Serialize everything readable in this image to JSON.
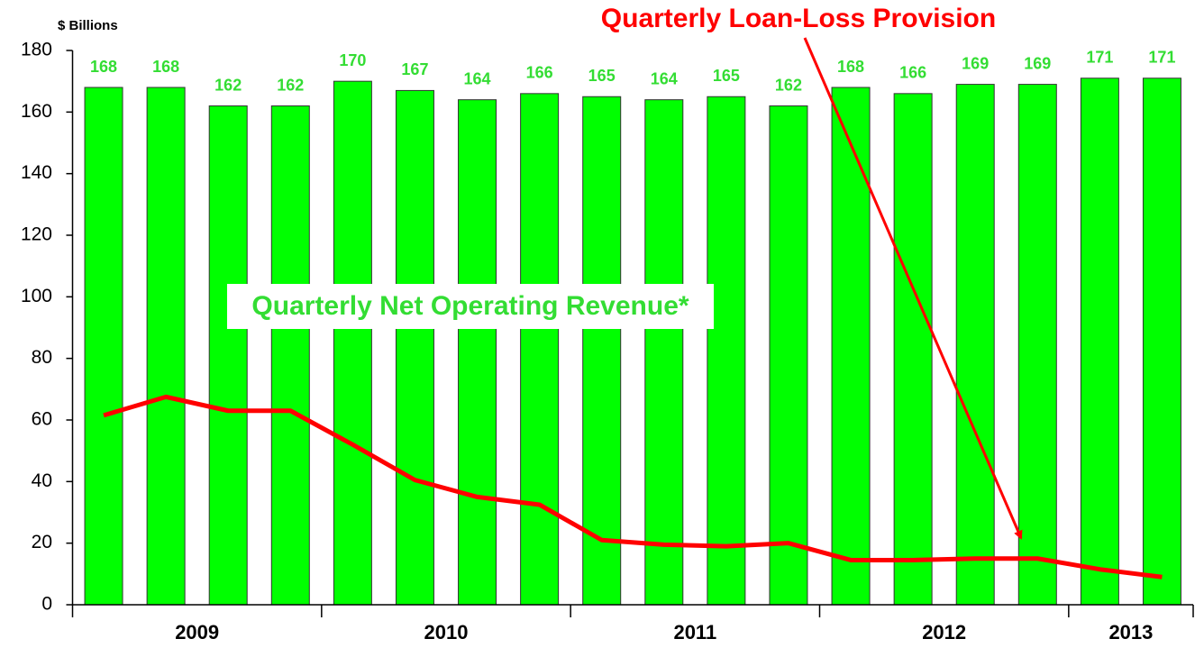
{
  "chart_data": {
    "type": "bar-line",
    "y_label": "$ Billions",
    "categories": [
      "2009",
      "2009",
      "2009",
      "2009",
      "2010",
      "2010",
      "2010",
      "2010",
      "2011",
      "2011",
      "2011",
      "2011",
      "2012",
      "2012",
      "2012",
      "2012",
      "2013",
      "2013"
    ],
    "series": [
      {
        "name": "Quarterly Net Operating Revenue*",
        "type": "bar",
        "color": "#00ff00",
        "label_color": "#33dd33",
        "values": [
          168,
          168,
          162,
          162,
          170,
          167,
          164,
          166,
          165,
          164,
          165,
          162,
          168,
          166,
          169,
          169,
          171,
          171
        ]
      },
      {
        "name": "Quarterly Loan-Loss Provision",
        "type": "line",
        "color": "#ff0000",
        "values": [
          61.5,
          67.5,
          63,
          63,
          52,
          40.5,
          35,
          32.5,
          21,
          19.5,
          19,
          20,
          14.5,
          14.5,
          15,
          15,
          11.5,
          9
        ]
      }
    ],
    "ylim": [
      0,
      180
    ],
    "yticks": [
      0,
      20,
      40,
      60,
      80,
      100,
      120,
      140,
      160,
      180
    ],
    "grid": false
  }
}
